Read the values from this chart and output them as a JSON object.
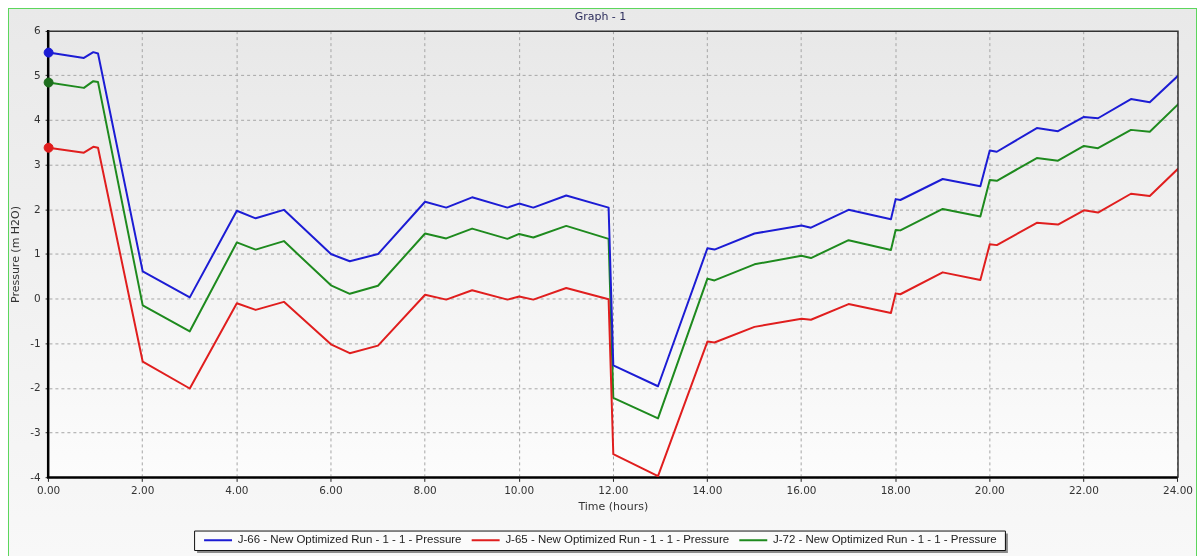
{
  "chart_data": {
    "type": "line",
    "title": "Graph - 1",
    "xlabel": "Time (hours)",
    "ylabel": "Pressure (m H2O)",
    "xlim": [
      0,
      24
    ],
    "xticks": [
      {
        "value": 0,
        "label": "0.00"
      },
      {
        "value": 2,
        "label": "2.00"
      },
      {
        "value": 4,
        "label": "4.00"
      },
      {
        "value": 6,
        "label": "6.00"
      },
      {
        "value": 8,
        "label": "8.00"
      },
      {
        "value": 10,
        "label": "10.00"
      },
      {
        "value": 12,
        "label": "12.00"
      },
      {
        "value": 14,
        "label": "14.00"
      },
      {
        "value": 16,
        "label": "16.00"
      },
      {
        "value": 18,
        "label": "18.00"
      },
      {
        "value": 20,
        "label": "20.00"
      },
      {
        "value": 22,
        "label": "22.00"
      },
      {
        "value": 24,
        "label": "24.00"
      }
    ],
    "ylim": [
      -4,
      6
    ],
    "yticks": [
      -4,
      -3,
      -2,
      -1,
      0,
      1,
      2,
      3,
      4,
      5,
      6
    ],
    "grid": true,
    "legend": "bottom",
    "line_style": "solid",
    "x": [
      0,
      0.75,
      0.95,
      1.05,
      2,
      3,
      4,
      4.4,
      5,
      6,
      6.4,
      7,
      8,
      8.45,
      9,
      9.75,
      10,
      10.3,
      11,
      11.9,
      12,
      12.95,
      14,
      14.15,
      15,
      16,
      16.2,
      17,
      17.9,
      18,
      18.1,
      19,
      19.8,
      20,
      20.15,
      21,
      21.45,
      22,
      22.3,
      23,
      23.4,
      24
    ],
    "series": [
      {
        "name": "J-66 - New Optimized Run - 1 - 1 - Pressure",
        "color": "#1c1cd4",
        "values": [
          5.52,
          5.4,
          5.53,
          5.5,
          0.62,
          0.04,
          1.98,
          1.81,
          2.0,
          1.01,
          0.85,
          1.01,
          2.18,
          2.05,
          2.28,
          2.05,
          2.14,
          2.05,
          2.32,
          2.05,
          -1.48,
          -1.95,
          1.14,
          1.11,
          1.47,
          1.65,
          1.6,
          2.0,
          1.79,
          2.24,
          2.22,
          2.69,
          2.53,
          3.33,
          3.3,
          3.83,
          3.76,
          4.08,
          4.05,
          4.48,
          4.41,
          5.0
        ]
      },
      {
        "name": "J-65 - New Optimized Run - 1 - 1 - Pressure",
        "color": "#e01e1e",
        "values": [
          3.39,
          3.28,
          3.41,
          3.39,
          -1.4,
          -2.0,
          -0.09,
          -0.24,
          -0.06,
          -1.01,
          -1.21,
          -1.04,
          0.1,
          -0.01,
          0.2,
          -0.01,
          0.06,
          -0.01,
          0.25,
          0.0,
          -3.47,
          -3.96,
          -0.95,
          -0.97,
          -0.62,
          -0.44,
          -0.46,
          -0.11,
          -0.31,
          0.13,
          0.11,
          0.6,
          0.43,
          1.23,
          1.21,
          1.71,
          1.67,
          1.99,
          1.94,
          2.36,
          2.31,
          2.92
        ]
      },
      {
        "name": "J-72 - New Optimized Run - 1 - 1 - Pressure",
        "color": "#1e8a1e",
        "values": [
          4.85,
          4.73,
          4.88,
          4.86,
          -0.14,
          -0.72,
          1.27,
          1.11,
          1.3,
          0.31,
          0.12,
          0.3,
          1.47,
          1.36,
          1.58,
          1.35,
          1.46,
          1.38,
          1.64,
          1.35,
          -2.21,
          -2.67,
          0.46,
          0.42,
          0.78,
          0.97,
          0.92,
          1.32,
          1.1,
          1.55,
          1.54,
          2.02,
          1.85,
          2.67,
          2.65,
          3.16,
          3.1,
          3.43,
          3.38,
          3.79,
          3.75,
          4.36
        ]
      },
      {
        "type": "scatter",
        "marker": "circle",
        "color": "#1c1cd4",
        "values": [
          5.52,
          null,
          null,
          null,
          null,
          null,
          null,
          null,
          null,
          null,
          null,
          null,
          null,
          null,
          null,
          null,
          null,
          null,
          null,
          null,
          null,
          null,
          null,
          null,
          null,
          null,
          null,
          null,
          null,
          null,
          null,
          null,
          null,
          null,
          null,
          null,
          null,
          null,
          null,
          null,
          null,
          null
        ]
      },
      {
        "type": "scatter",
        "marker": "circle",
        "color": "#e01e1e",
        "values": [
          3.39,
          null,
          null,
          null,
          null,
          null,
          null,
          null,
          null,
          null,
          null,
          null,
          null,
          null,
          null,
          null,
          null,
          null,
          null,
          null,
          null,
          null,
          null,
          null,
          null,
          null,
          null,
          null,
          null,
          null,
          null,
          null,
          null,
          null,
          null,
          null,
          null,
          null,
          null,
          null,
          null,
          null
        ]
      },
      {
        "type": "scatter",
        "marker": "circle",
        "color": "#1e6e1e",
        "values": [
          4.85,
          null,
          null,
          null,
          null,
          null,
          null,
          null,
          null,
          null,
          null,
          null,
          null,
          null,
          null,
          null,
          null,
          null,
          null,
          null,
          null,
          null,
          null,
          null,
          null,
          null,
          null,
          null,
          null,
          null,
          null,
          null,
          null,
          null,
          null,
          null,
          null,
          null,
          null,
          null,
          null,
          null
        ]
      }
    ]
  }
}
